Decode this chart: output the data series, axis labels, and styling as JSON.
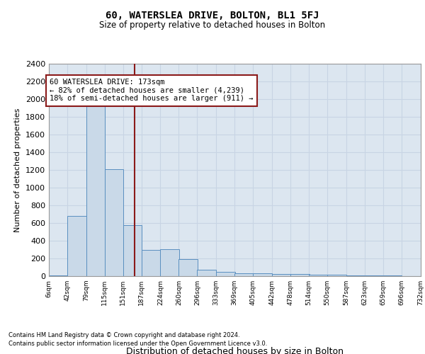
{
  "title": "60, WATERSLEA DRIVE, BOLTON, BL1 5FJ",
  "subtitle": "Size of property relative to detached houses in Bolton",
  "xlabel": "Distribution of detached houses by size in Bolton",
  "ylabel": "Number of detached properties",
  "footnote1": "Contains HM Land Registry data © Crown copyright and database right 2024.",
  "footnote2": "Contains public sector information licensed under the Open Government Licence v3.0.",
  "bar_color": "#c9d9e8",
  "bar_edge_color": "#5a8fc0",
  "grid_color": "#c8d4e4",
  "background_color": "#dce6f0",
  "vline_color": "#8b1a1a",
  "annotation_line1": "60 WATERSLEA DRIVE: 173sqm",
  "annotation_line2": "← 82% of detached houses are smaller (4,239)",
  "annotation_line3": "18% of semi-detached houses are larger (911) →",
  "property_size": 173,
  "bins_left": [
    6,
    42,
    79,
    115,
    151,
    187,
    224,
    260,
    296,
    333,
    369,
    405,
    442,
    478,
    514,
    550,
    587,
    623,
    659,
    696
  ],
  "bin_width": 37,
  "counts": [
    10,
    680,
    1930,
    1210,
    580,
    300,
    305,
    195,
    75,
    45,
    35,
    30,
    25,
    25,
    20,
    15,
    10,
    8,
    5,
    3
  ],
  "ylim": [
    0,
    2400
  ],
  "yticks": [
    0,
    200,
    400,
    600,
    800,
    1000,
    1200,
    1400,
    1600,
    1800,
    2000,
    2200,
    2400
  ],
  "xtick_labels": [
    "6sqm",
    "42sqm",
    "79sqm",
    "115sqm",
    "151sqm",
    "187sqm",
    "224sqm",
    "260sqm",
    "296sqm",
    "333sqm",
    "369sqm",
    "405sqm",
    "442sqm",
    "478sqm",
    "514sqm",
    "550sqm",
    "587sqm",
    "623sqm",
    "659sqm",
    "696sqm",
    "732sqm"
  ]
}
